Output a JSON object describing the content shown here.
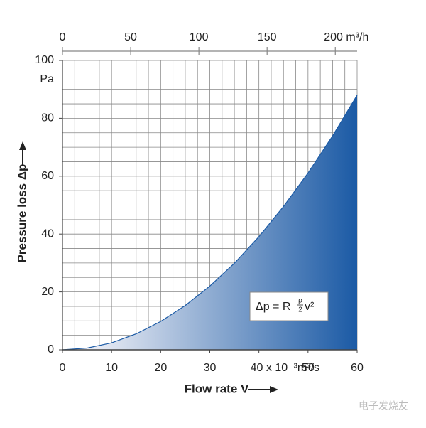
{
  "chart_data": {
    "type": "area",
    "x_label": "Flow rate V",
    "y_label": "Pressure loss Δp",
    "y_unit": "Pa",
    "x": [
      0,
      5,
      10,
      15,
      20,
      25,
      30,
      35,
      40,
      45,
      50,
      55,
      60
    ],
    "values": [
      0,
      0.6,
      2.4,
      5.5,
      9.8,
      15.3,
      22,
      29.9,
      39.1,
      49.5,
      61.1,
      73.9,
      88
    ],
    "color": "#1b5aa5",
    "color_light": "#e8ebf4",
    "xlim": [
      0,
      60
    ],
    "xticks": [
      0,
      10,
      20,
      30,
      {
        "value": 40,
        "label": "40 x 10⁻³m³/s"
      },
      50,
      60
    ],
    "x2lim": [
      0,
      216
    ],
    "x2ticks": [
      0,
      50,
      100,
      150,
      {
        "value": 200,
        "label": "200 m³/h"
      }
    ],
    "ylim": [
      0,
      100
    ],
    "yticks": [
      0,
      20,
      40,
      60,
      80,
      100
    ],
    "grid": true,
    "minor_grid": {
      "x": 2.5,
      "y": 5
    },
    "annotation": {
      "lhs": "Δp = R",
      "num": "ρ",
      "den": "2",
      "rhs": "v²"
    },
    "watermark": "电子发烧友"
  }
}
